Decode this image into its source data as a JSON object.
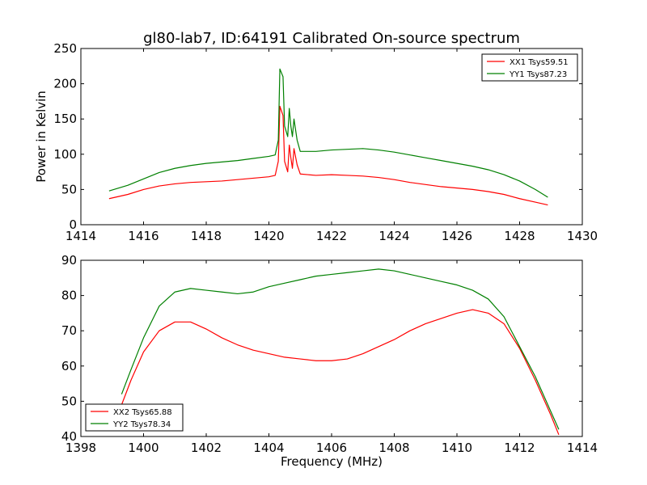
{
  "title": "gl80-lab7, ID:64191 Calibrated On-source spectrum",
  "colors": {
    "red": "#ff0000",
    "green": "#008000"
  },
  "chart_data": [
    {
      "type": "line",
      "ylabel": "Power in Kelvin",
      "xlabel": "",
      "xlim": [
        1414,
        1430
      ],
      "ylim": [
        0,
        250
      ],
      "xticks": [
        "1414",
        "1416",
        "1418",
        "1420",
        "1422",
        "1424",
        "1426",
        "1428",
        "1430"
      ],
      "yticks": [
        "0",
        "50",
        "100",
        "150",
        "200",
        "250"
      ],
      "legend_position": "top-right",
      "series": [
        {
          "name": "XX1 Tsys59.51",
          "color": "#ff0000",
          "points": [
            [
              1414.9,
              37
            ],
            [
              1415.5,
              43
            ],
            [
              1416,
              50
            ],
            [
              1416.5,
              55
            ],
            [
              1417,
              58
            ],
            [
              1417.5,
              60
            ],
            [
              1418,
              61
            ],
            [
              1418.5,
              62
            ],
            [
              1419,
              64
            ],
            [
              1419.5,
              66
            ],
            [
              1420,
              68
            ],
            [
              1420.2,
              70
            ],
            [
              1420.3,
              90
            ],
            [
              1420.35,
              168
            ],
            [
              1420.45,
              155
            ],
            [
              1420.5,
              90
            ],
            [
              1420.6,
              75
            ],
            [
              1420.65,
              113
            ],
            [
              1420.7,
              95
            ],
            [
              1420.75,
              80
            ],
            [
              1420.8,
              108
            ],
            [
              1420.9,
              85
            ],
            [
              1421,
              72
            ],
            [
              1421.5,
              70
            ],
            [
              1422,
              71
            ],
            [
              1422.5,
              70
            ],
            [
              1423,
              69
            ],
            [
              1423.5,
              67
            ],
            [
              1424,
              64
            ],
            [
              1424.5,
              60
            ],
            [
              1425,
              57
            ],
            [
              1425.5,
              54
            ],
            [
              1426,
              52
            ],
            [
              1426.5,
              50
            ],
            [
              1427,
              47
            ],
            [
              1427.5,
              43
            ],
            [
              1428,
              37
            ],
            [
              1428.5,
              32
            ],
            [
              1428.9,
              28
            ]
          ]
        },
        {
          "name": "YY1 Tsys87.23",
          "color": "#008000",
          "points": [
            [
              1414.9,
              48
            ],
            [
              1415.5,
              56
            ],
            [
              1416,
              65
            ],
            [
              1416.5,
              74
            ],
            [
              1417,
              80
            ],
            [
              1417.5,
              84
            ],
            [
              1418,
              87
            ],
            [
              1418.5,
              89
            ],
            [
              1419,
              91
            ],
            [
              1419.5,
              94
            ],
            [
              1420,
              97
            ],
            [
              1420.2,
              99
            ],
            [
              1420.3,
              120
            ],
            [
              1420.35,
              221
            ],
            [
              1420.45,
              210
            ],
            [
              1420.5,
              140
            ],
            [
              1420.6,
              125
            ],
            [
              1420.65,
              165
            ],
            [
              1420.7,
              140
            ],
            [
              1420.75,
              125
            ],
            [
              1420.8,
              150
            ],
            [
              1420.9,
              120
            ],
            [
              1421,
              104
            ],
            [
              1421.5,
              104
            ],
            [
              1422,
              106
            ],
            [
              1422.5,
              107
            ],
            [
              1423,
              108
            ],
            [
              1423.5,
              106
            ],
            [
              1424,
              103
            ],
            [
              1424.5,
              99
            ],
            [
              1425,
              95
            ],
            [
              1425.5,
              91
            ],
            [
              1426,
              87
            ],
            [
              1426.5,
              83
            ],
            [
              1427,
              78
            ],
            [
              1427.5,
              71
            ],
            [
              1428,
              62
            ],
            [
              1428.5,
              50
            ],
            [
              1428.9,
              39
            ]
          ]
        }
      ]
    },
    {
      "type": "line",
      "xlabel": "Frequency (MHz)",
      "ylabel": "",
      "xlim": [
        1398,
        1414
      ],
      "ylim": [
        40,
        90
      ],
      "xticks": [
        "1398",
        "1400",
        "1402",
        "1404",
        "1406",
        "1408",
        "1410",
        "1412",
        "1414"
      ],
      "yticks": [
        "40",
        "50",
        "60",
        "70",
        "80",
        "90"
      ],
      "legend_position": "bottom-left",
      "series": [
        {
          "name": "XX2 Tsys65.88",
          "color": "#ff0000",
          "points": [
            [
              1399.3,
              49
            ],
            [
              1399.6,
              56
            ],
            [
              1400,
              64
            ],
            [
              1400.5,
              70
            ],
            [
              1401,
              72.5
            ],
            [
              1401.5,
              72.5
            ],
            [
              1402,
              70.5
            ],
            [
              1402.5,
              68
            ],
            [
              1403,
              66
            ],
            [
              1403.5,
              64.5
            ],
            [
              1404,
              63.5
            ],
            [
              1404.5,
              62.5
            ],
            [
              1405,
              62
            ],
            [
              1405.5,
              61.5
            ],
            [
              1406,
              61.5
            ],
            [
              1406.5,
              62
            ],
            [
              1407,
              63.5
            ],
            [
              1407.5,
              65.5
            ],
            [
              1408,
              67.5
            ],
            [
              1408.5,
              70
            ],
            [
              1409,
              72
            ],
            [
              1409.5,
              73.5
            ],
            [
              1410,
              75
            ],
            [
              1410.5,
              76
            ],
            [
              1411,
              75
            ],
            [
              1411.5,
              72
            ],
            [
              1412,
              65
            ],
            [
              1412.5,
              56
            ],
            [
              1413,
              46
            ],
            [
              1413.25,
              40.5
            ]
          ]
        },
        {
          "name": "YY2 Tsys78.34",
          "color": "#008000",
          "points": [
            [
              1399.3,
              52
            ],
            [
              1399.6,
              59
            ],
            [
              1400,
              68
            ],
            [
              1400.5,
              77
            ],
            [
              1401,
              81
            ],
            [
              1401.5,
              82
            ],
            [
              1402,
              81.5
            ],
            [
              1402.5,
              81
            ],
            [
              1403,
              80.5
            ],
            [
              1403.5,
              81
            ],
            [
              1404,
              82.5
            ],
            [
              1404.5,
              83.5
            ],
            [
              1405,
              84.5
            ],
            [
              1405.5,
              85.5
            ],
            [
              1406,
              86
            ],
            [
              1406.5,
              86.5
            ],
            [
              1407,
              87
            ],
            [
              1407.5,
              87.5
            ],
            [
              1408,
              87
            ],
            [
              1408.5,
              86
            ],
            [
              1409,
              85
            ],
            [
              1409.5,
              84
            ],
            [
              1410,
              83
            ],
            [
              1410.5,
              81.5
            ],
            [
              1411,
              79
            ],
            [
              1411.5,
              74
            ],
            [
              1412,
              65.5
            ],
            [
              1412.5,
              57
            ],
            [
              1413,
              47
            ],
            [
              1413.25,
              42
            ]
          ]
        }
      ]
    }
  ]
}
